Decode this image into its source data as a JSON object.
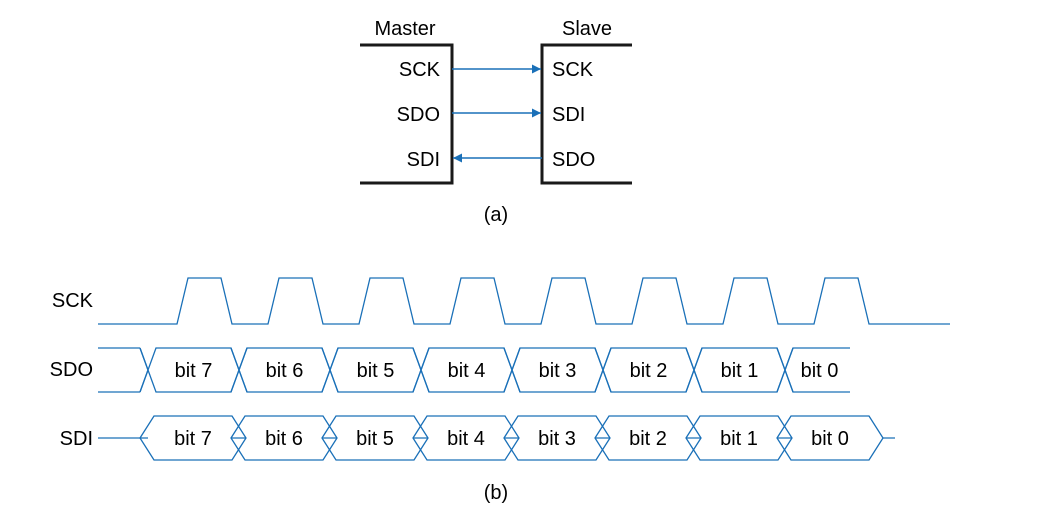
{
  "colors": {
    "wire": "#1a70b8",
    "arrow": "#1a70b8",
    "box": "#1a1a1a"
  },
  "part_a": {
    "caption": "(a)",
    "master": {
      "title": "Master",
      "pins": [
        "SCK",
        "SDO",
        "SDI"
      ]
    },
    "slave": {
      "title": "Slave",
      "pins": [
        "SCK",
        "SDI",
        "SDO"
      ]
    },
    "connections": [
      {
        "from": "Master.SCK",
        "to": "Slave.SCK",
        "direction": "master-to-slave"
      },
      {
        "from": "Master.SDO",
        "to": "Slave.SDI",
        "direction": "master-to-slave"
      },
      {
        "from": "Slave.SDO",
        "to": "Master.SDI",
        "direction": "slave-to-master"
      }
    ]
  },
  "part_b": {
    "caption": "(b)",
    "signals": {
      "sck": "SCK",
      "sdo": "SDO",
      "sdi": "SDI"
    },
    "clock_pulses": 8,
    "bits": [
      "bit 7",
      "bit 6",
      "bit 5",
      "bit 4",
      "bit 3",
      "bit 2",
      "bit 1",
      "bit 0"
    ]
  }
}
